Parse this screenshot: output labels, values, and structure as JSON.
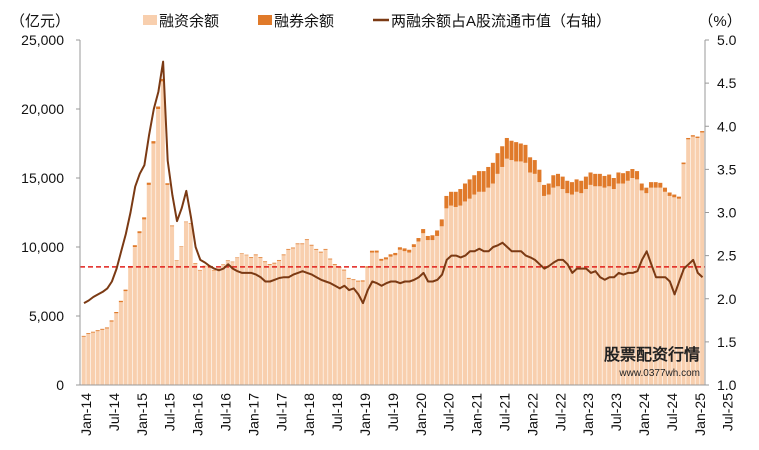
{
  "chart_data": {
    "type": "bar+line",
    "left_unit": "（亿元）",
    "right_unit": "（%）",
    "legend": [
      "融资余额",
      "融券余额",
      "两融余额占A股流通市值（右轴）"
    ],
    "legend_placement": "top",
    "y_left": {
      "min": 0,
      "max": 25000,
      "ticks": [
        "0",
        "5,000",
        "10,000",
        "15,000",
        "20,000",
        "25,000"
      ]
    },
    "y_right": {
      "min": 1.0,
      "max": 5.0,
      "ticks": [
        "1.0",
        "1.5",
        "2.0",
        "2.5",
        "3.0",
        "3.5",
        "4.0",
        "4.5",
        "5.0"
      ]
    },
    "x_ticks": [
      "Jan-14",
      "Jul-14",
      "Jan-15",
      "Jul-15",
      "Jan-16",
      "Jul-16",
      "Jan-17",
      "Jul-17",
      "Jan-18",
      "Jul-18",
      "Jan-19",
      "Jul-19",
      "Jan-20",
      "Jul-20",
      "Jan-21",
      "Jul-21",
      "Jan-22",
      "Jul-22",
      "Jan-23",
      "Jul-23",
      "Jan-24",
      "Jul-24",
      "Jan-25",
      "Jul-25"
    ],
    "start_month": "2014-01",
    "financing_balance": [
      3500,
      3700,
      3800,
      3900,
      4000,
      4100,
      4600,
      5200,
      6000,
      6800,
      8500,
      10000,
      11000,
      12000,
      14500,
      17500,
      20000,
      22000,
      14500,
      11500,
      9000,
      10000,
      11800,
      11700,
      8800,
      8300,
      8600,
      8600,
      8300,
      8400,
      8700,
      9000,
      8900,
      9200,
      9500,
      9400,
      9200,
      9400,
      9200,
      8900,
      8700,
      8800,
      9000,
      9400,
      9800,
      9900,
      10200,
      10200,
      10500,
      10100,
      9800,
      9600,
      9800,
      9100,
      8700,
      8500,
      8300,
      7700,
      7600,
      7500,
      7500,
      8500,
      9600,
      9600,
      9000,
      9100,
      9300,
      9400,
      9800,
      9700,
      9600,
      10000,
      10400,
      11000,
      10500,
      10500,
      10800,
      11500,
      12800,
      13000,
      12900,
      13000,
      13300,
      13500,
      13800,
      14000,
      14000,
      14300,
      14600,
      15300,
      15800,
      16400,
      16300,
      16200,
      16200,
      16100,
      15400,
      15300,
      14700,
      13700,
      13800,
      14300,
      14400,
      14200,
      13900,
      13800,
      14000,
      13900,
      14200,
      14500,
      14400,
      14400,
      14300,
      14400,
      14200,
      14600,
      14600,
      14800,
      15000,
      14900,
      14100,
      13900,
      14300,
      14300,
      14300,
      14000,
      13700,
      13600,
      13500,
      16000,
      17800,
      18000,
      17900,
      18300
    ],
    "short_balance": [
      60,
      60,
      60,
      70,
      70,
      70,
      80,
      90,
      100,
      110,
      120,
      130,
      140,
      150,
      160,
      170,
      180,
      180,
      120,
      60,
      40,
      40,
      40,
      40,
      40,
      40,
      40,
      40,
      40,
      40,
      40,
      40,
      40,
      40,
      40,
      40,
      60,
      60,
      60,
      60,
      60,
      60,
      60,
      60,
      60,
      60,
      60,
      60,
      60,
      60,
      60,
      60,
      60,
      60,
      60,
      60,
      60,
      60,
      60,
      60,
      80,
      100,
      130,
      140,
      140,
      150,
      170,
      170,
      180,
      200,
      200,
      200,
      250,
      300,
      300,
      350,
      400,
      500,
      900,
      1000,
      1100,
      1200,
      1300,
      1400,
      1400,
      1500,
      1500,
      1500,
      1500,
      1500,
      1500,
      1500,
      1400,
      1400,
      1300,
      1300,
      1100,
      1000,
      900,
      800,
      800,
      900,
      900,
      900,
      900,
      900,
      900,
      900,
      900,
      900,
      900,
      900,
      850,
      850,
      800,
      800,
      750,
      700,
      650,
      600,
      500,
      400,
      400,
      400,
      350,
      300,
      250,
      200,
      150,
      120,
      100,
      100,
      100,
      100
    ],
    "ratio_pct": [
      1.95,
      1.98,
      2.02,
      2.05,
      2.08,
      2.12,
      2.2,
      2.35,
      2.55,
      2.75,
      3.0,
      3.3,
      3.45,
      3.55,
      3.9,
      4.2,
      4.4,
      4.75,
      3.6,
      3.2,
      2.9,
      3.05,
      3.25,
      2.95,
      2.6,
      2.45,
      2.42,
      2.38,
      2.35,
      2.33,
      2.35,
      2.4,
      2.35,
      2.32,
      2.3,
      2.3,
      2.3,
      2.28,
      2.25,
      2.2,
      2.2,
      2.22,
      2.24,
      2.25,
      2.25,
      2.28,
      2.3,
      2.32,
      2.3,
      2.28,
      2.25,
      2.22,
      2.2,
      2.18,
      2.15,
      2.12,
      2.15,
      2.1,
      2.12,
      2.05,
      1.95,
      2.1,
      2.2,
      2.18,
      2.15,
      2.18,
      2.2,
      2.2,
      2.18,
      2.2,
      2.2,
      2.22,
      2.25,
      2.3,
      2.2,
      2.2,
      2.22,
      2.28,
      2.45,
      2.5,
      2.5,
      2.48,
      2.5,
      2.55,
      2.55,
      2.58,
      2.55,
      2.55,
      2.6,
      2.62,
      2.65,
      2.6,
      2.55,
      2.55,
      2.55,
      2.5,
      2.48,
      2.45,
      2.4,
      2.35,
      2.38,
      2.42,
      2.45,
      2.45,
      2.4,
      2.3,
      2.35,
      2.35,
      2.35,
      2.3,
      2.32,
      2.25,
      2.22,
      2.25,
      2.25,
      2.3,
      2.28,
      2.3,
      2.3,
      2.32,
      2.45,
      2.55,
      2.4,
      2.25,
      2.25,
      2.25,
      2.2,
      2.05,
      2.2,
      2.35,
      2.4,
      2.45,
      2.3,
      2.25
    ],
    "average_line_pct": 2.37,
    "colors": {
      "financing": "#f8cfae",
      "short": "#e07a2a",
      "ratio": "#7b3a14",
      "average": "#e0201c"
    },
    "grid": false
  },
  "watermark": {
    "text": "股票配资行情",
    "url": "www.0377wh.com"
  }
}
